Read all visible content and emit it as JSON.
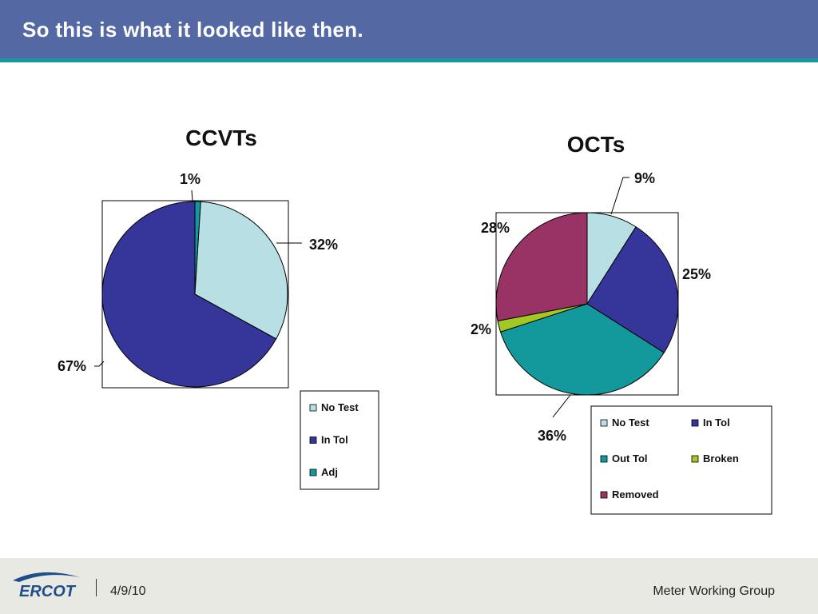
{
  "slide": {
    "title": "So this is what it looked like then."
  },
  "footer": {
    "logo_text": "ERCOT",
    "date": "4/9/10",
    "group": "Meter Working Group"
  },
  "colors": {
    "header": "#5468a3",
    "header_stripe": "#149aa0",
    "footer": "#e9e9e3",
    "logo": "#1f4e8c"
  },
  "chart_data": [
    {
      "type": "pie",
      "title": "CCVTs",
      "legend": "bottom-right",
      "slices": [
        {
          "label": "No Test",
          "value": 32,
          "display": "32%",
          "color": "#b8e0e4"
        },
        {
          "label": "In Tol",
          "value": 67,
          "display": "67%",
          "color": "#35359a"
        },
        {
          "label": "Adj",
          "value": 1,
          "display": "1%",
          "color": "#13999b"
        }
      ]
    },
    {
      "type": "pie",
      "title": "OCTs",
      "legend": "bottom",
      "slices": [
        {
          "label": "No Test",
          "value": 9,
          "display": "9%",
          "color": "#b8e0e4"
        },
        {
          "label": "In Tol",
          "value": 25,
          "display": "25%",
          "color": "#35359a"
        },
        {
          "label": "Out Tol",
          "value": 36,
          "display": "36%",
          "color": "#13999b"
        },
        {
          "label": "Broken",
          "value": 2,
          "display": "2%",
          "color": "#a3c823"
        },
        {
          "label": "Removed",
          "value": 28,
          "display": "28%",
          "color": "#993366"
        }
      ]
    }
  ]
}
